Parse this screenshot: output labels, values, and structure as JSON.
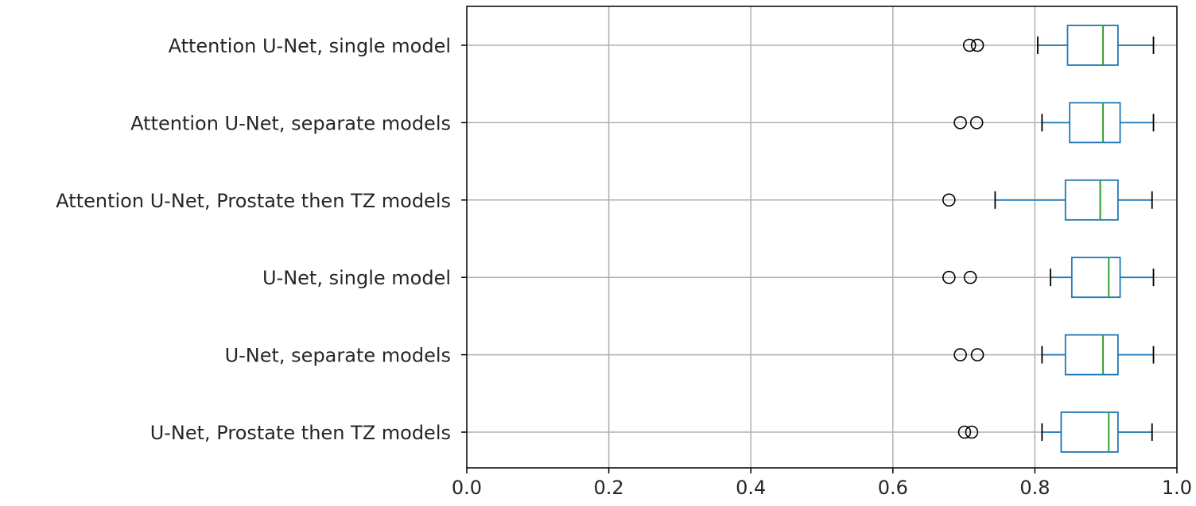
{
  "chart_data": {
    "type": "boxplot",
    "orientation": "horizontal",
    "title": "",
    "xlabel": "",
    "ylabel": "",
    "xlim": [
      0.0,
      1.0
    ],
    "x_ticks": [
      "0.0",
      "0.2",
      "0.4",
      "0.6",
      "0.8",
      "1.0"
    ],
    "grid": true,
    "colors": {
      "box": "#1f77b4",
      "median": "#2ca02c",
      "whisker": "#1f77b4",
      "cap": "#000000",
      "flier": "#000000",
      "grid": "#b0b0b0",
      "axis": "#000000"
    },
    "categories": [
      "Attention U-Net, single model",
      "Attention U-Net, separate models",
      "Attention U-Net, Prostate then TZ models",
      "U-Net, single model",
      "U-Net, separate models",
      "U-Net, Prostate then TZ models"
    ],
    "boxes": [
      {
        "label": "Attention U-Net, single model",
        "whisker_low": 0.804,
        "q1": 0.846,
        "median": 0.896,
        "q3": 0.917,
        "whisker_high": 0.967,
        "outliers": [
          0.708,
          0.719
        ]
      },
      {
        "label": "Attention U-Net, separate models",
        "whisker_low": 0.81,
        "q1": 0.849,
        "median": 0.896,
        "q3": 0.92,
        "whisker_high": 0.967,
        "outliers": [
          0.695,
          0.718
        ]
      },
      {
        "label": "Attention U-Net, Prostate then TZ models",
        "whisker_low": 0.744,
        "q1": 0.843,
        "median": 0.892,
        "q3": 0.917,
        "whisker_high": 0.965,
        "outliers": [
          0.679
        ]
      },
      {
        "label": "U-Net, single model",
        "whisker_low": 0.822,
        "q1": 0.852,
        "median": 0.904,
        "q3": 0.92,
        "whisker_high": 0.967,
        "outliers": [
          0.679,
          0.709
        ]
      },
      {
        "label": "U-Net, separate models",
        "whisker_low": 0.81,
        "q1": 0.843,
        "median": 0.896,
        "q3": 0.917,
        "whisker_high": 0.967,
        "outliers": [
          0.695,
          0.719
        ]
      },
      {
        "label": "U-Net, Prostate then TZ models",
        "whisker_low": 0.81,
        "q1": 0.837,
        "median": 0.904,
        "q3": 0.917,
        "whisker_high": 0.965,
        "outliers": [
          0.701,
          0.711
        ]
      }
    ]
  }
}
